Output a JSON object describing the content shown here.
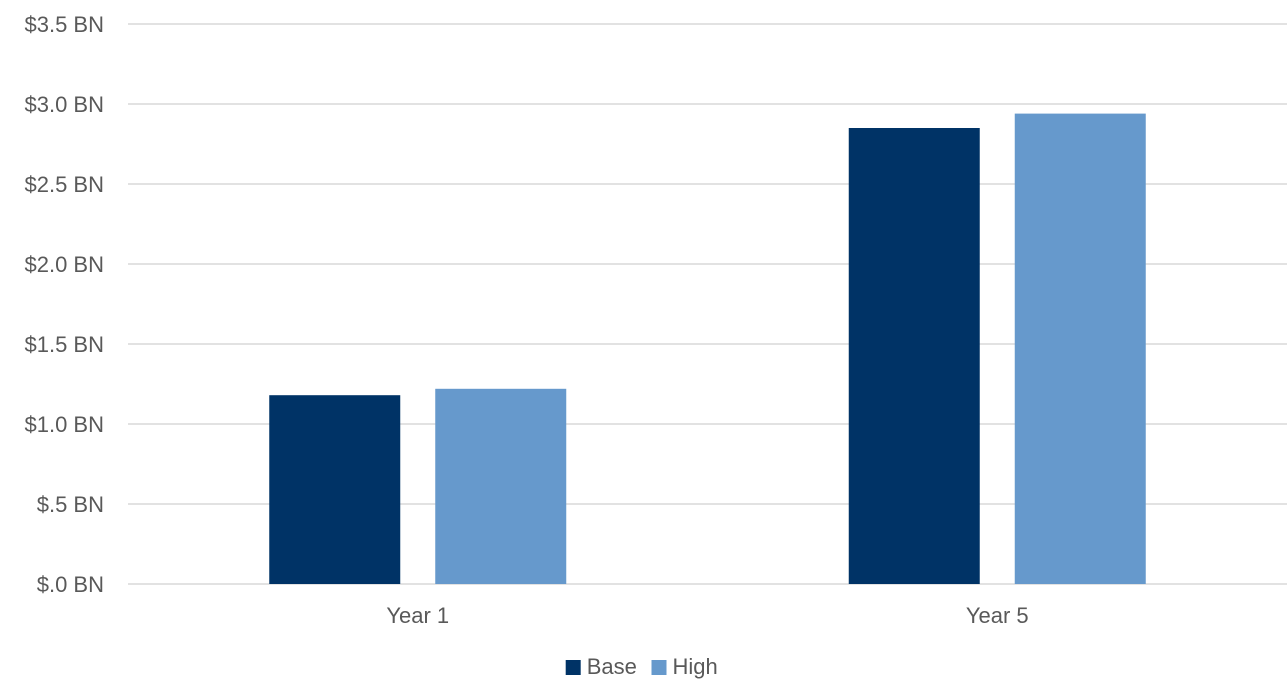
{
  "chart_data": {
    "type": "bar",
    "title": "",
    "xlabel": "",
    "ylabel": "",
    "categories": [
      "Year 1",
      "Year 5"
    ],
    "series": [
      {
        "name": "Base",
        "values": [
          1.18,
          2.85
        ],
        "color": "#003366"
      },
      {
        "name": "High",
        "values": [
          1.22,
          2.94
        ],
        "color": "#6699CC"
      }
    ],
    "ylim": [
      0,
      3.5
    ],
    "y_ticks": [
      0,
      0.5,
      1.0,
      1.5,
      2.0,
      2.5,
      3.0,
      3.5
    ],
    "y_tick_labels": [
      "$.0 BN",
      "$.5 BN",
      "$1.0 BN",
      "$1.5 BN",
      "$2.0 BN",
      "$2.5 BN",
      "$3.0 BN",
      "$3.5 BN"
    ],
    "grid": true,
    "gridline_color": "#D9D9D9",
    "text_color": "#595959",
    "legend": {
      "position": "bottom",
      "entries": [
        "Base",
        "High"
      ]
    }
  }
}
